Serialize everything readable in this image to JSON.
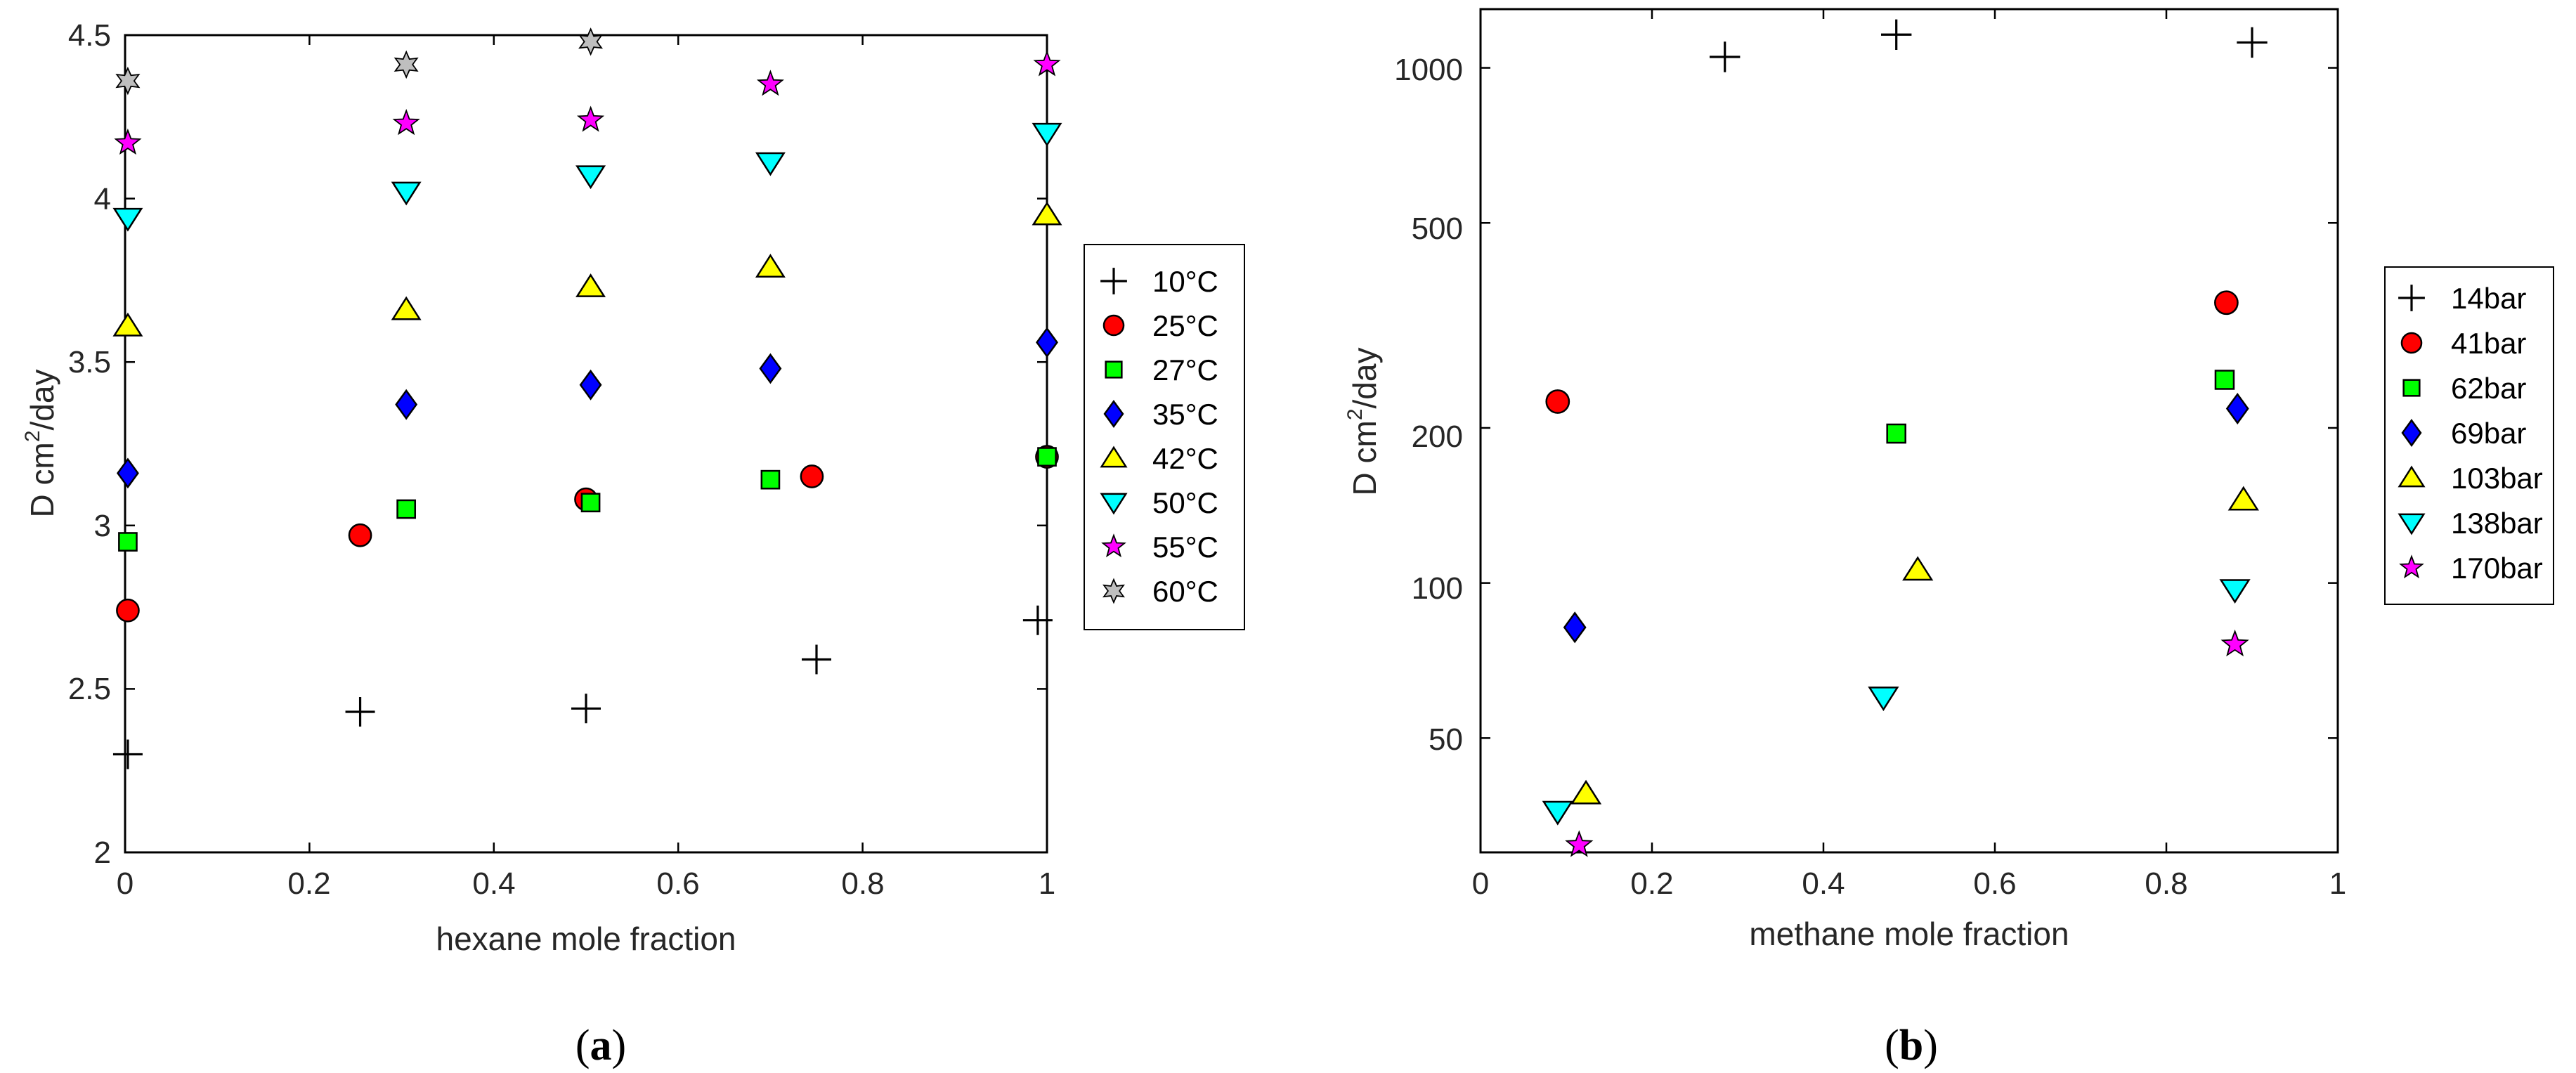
{
  "chart_data": [
    {
      "type": "scatter",
      "title": "",
      "xlabel": "hexane mole fraction",
      "ylabel": "D cm²/day",
      "ylabel_main": "D cm",
      "ylabel_sup": "2",
      "ylabel_tail": "/day",
      "xlim": [
        0,
        1
      ],
      "ylim": [
        2,
        4.5
      ],
      "yscale": "linear",
      "xticks": [
        0,
        0.2,
        0.4,
        0.6,
        0.8,
        1
      ],
      "xtick_labels": [
        "0",
        "0.2",
        "0.4",
        "0.6",
        "0.8",
        "1"
      ],
      "yticks": [
        2,
        2.5,
        3,
        3.5,
        4,
        4.5
      ],
      "ytick_labels": [
        "2",
        "2.5",
        "3",
        "3.5",
        "4",
        "4.5"
      ],
      "caption": "(a)",
      "caption_open": "(",
      "caption_letter": "a",
      "caption_close": ")",
      "legend_position": "outside-right",
      "series": [
        {
          "name": "10°C",
          "marker": "plus",
          "color": "#000000",
          "points": [
            [
              0.003,
              2.3
            ],
            [
              0.255,
              2.43
            ],
            [
              0.5,
              2.44
            ],
            [
              0.75,
              2.59
            ],
            [
              0.99,
              2.71
            ]
          ]
        },
        {
          "name": "25°C",
          "marker": "circle",
          "color": "#ff0000",
          "points": [
            [
              0.003,
              2.74
            ],
            [
              0.255,
              2.97
            ],
            [
              0.5,
              3.08
            ],
            [
              0.745,
              3.15
            ],
            [
              1.0,
              3.21
            ]
          ]
        },
        {
          "name": "27°C",
          "marker": "square",
          "color": "#00ff00",
          "points": [
            [
              0.003,
              2.95
            ],
            [
              0.305,
              3.05
            ],
            [
              0.505,
              3.07
            ],
            [
              0.7,
              3.14
            ],
            [
              1.0,
              3.21
            ]
          ]
        },
        {
          "name": "35°C",
          "marker": "diamond",
          "color": "#0000ff",
          "points": [
            [
              0.003,
              3.16
            ],
            [
              0.305,
              3.37
            ],
            [
              0.505,
              3.43
            ],
            [
              0.7,
              3.48
            ],
            [
              1.0,
              3.56
            ]
          ]
        },
        {
          "name": "42°C",
          "marker": "triangle-up",
          "color": "#ffff00",
          "points": [
            [
              0.003,
              3.61
            ],
            [
              0.305,
              3.66
            ],
            [
              0.505,
              3.73
            ],
            [
              0.7,
              3.79
            ],
            [
              1.0,
              3.95
            ]
          ]
        },
        {
          "name": "50°C",
          "marker": "triangle-down",
          "color": "#00ffff",
          "points": [
            [
              0.003,
              3.94
            ],
            [
              0.305,
              4.02
            ],
            [
              0.505,
              4.07
            ],
            [
              0.7,
              4.11
            ],
            [
              1.0,
              4.2
            ]
          ]
        },
        {
          "name": "55°C",
          "marker": "star5",
          "color": "#ff00ff",
          "points": [
            [
              0.003,
              4.17
            ],
            [
              0.305,
              4.23
            ],
            [
              0.505,
              4.24
            ],
            [
              0.7,
              4.35
            ],
            [
              1.0,
              4.41
            ]
          ]
        },
        {
          "name": "60°C",
          "marker": "star6",
          "color": "#bfbfbf",
          "points": [
            [
              0.003,
              4.36
            ],
            [
              0.305,
              4.41
            ],
            [
              0.505,
              4.48
            ]
          ]
        }
      ]
    },
    {
      "type": "scatter",
      "title": "",
      "xlabel": "methane mole fraction",
      "ylabel": "D cm²/day",
      "ylabel_main": "D cm",
      "ylabel_sup": "2",
      "ylabel_tail": "/day",
      "xlim": [
        0,
        1
      ],
      "ylim": [
        30,
        1300
      ],
      "yscale": "log",
      "xticks": [
        0,
        0.2,
        0.4,
        0.6,
        0.8,
        1
      ],
      "xtick_labels": [
        "0",
        "0.2",
        "0.4",
        "0.6",
        "0.8",
        "1"
      ],
      "yticks": [
        50,
        100,
        200,
        500,
        1000
      ],
      "ytick_labels": [
        "50",
        "100",
        "200",
        "500",
        "1000"
      ],
      "caption": "(b)",
      "caption_open": "(",
      "caption_letter": "b",
      "caption_close": ")",
      "legend_position": "outside-right",
      "series": [
        {
          "name": "14bar",
          "marker": "plus",
          "color": "#000000",
          "points": [
            [
              0.285,
              1050
            ],
            [
              0.485,
              1160
            ],
            [
              0.9,
              1120
            ]
          ]
        },
        {
          "name": "41bar",
          "marker": "circle",
          "color": "#ff0000",
          "points": [
            [
              0.09,
              225
            ],
            [
              0.87,
              350
            ]
          ]
        },
        {
          "name": "62bar",
          "marker": "square",
          "color": "#00ff00",
          "points": [
            [
              0.485,
              195
            ],
            [
              0.868,
              248
            ]
          ]
        },
        {
          "name": "69bar",
          "marker": "diamond",
          "color": "#0000ff",
          "points": [
            [
              0.11,
              82
            ],
            [
              0.883,
              218
            ]
          ]
        },
        {
          "name": "103bar",
          "marker": "triangle-up",
          "color": "#ffff00",
          "points": [
            [
              0.123,
              39
            ],
            [
              0.51,
              106
            ],
            [
              0.89,
              145
            ]
          ]
        },
        {
          "name": "138bar",
          "marker": "triangle-down",
          "color": "#00ffff",
          "points": [
            [
              0.09,
              36
            ],
            [
              0.47,
              60
            ],
            [
              0.88,
              97
            ]
          ]
        },
        {
          "name": "170bar",
          "marker": "star5",
          "color": "#ff00ff",
          "points": [
            [
              0.115,
              31
            ],
            [
              0.88,
              76
            ]
          ]
        }
      ]
    }
  ]
}
